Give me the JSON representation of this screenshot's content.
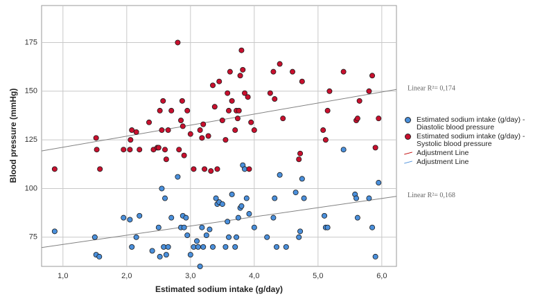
{
  "chart_data": {
    "type": "scatter",
    "x_label": "Estimated sodium intake (g/day)",
    "y_label": "Blood pressure (mmHg)",
    "xlim": [
      0.665,
      6.23
    ],
    "ylim": [
      60,
      194
    ],
    "xticks": [
      {
        "value": 1,
        "label": "1,0"
      },
      {
        "value": 2,
        "label": "2,0"
      },
      {
        "value": 3,
        "label": "3,0"
      },
      {
        "value": 4,
        "label": "4,0"
      },
      {
        "value": 5,
        "label": "5,0"
      },
      {
        "value": 6,
        "label": "6,0"
      }
    ],
    "yticks": [
      75,
      100,
      125,
      150,
      175
    ],
    "grid": true,
    "series": [
      {
        "name": "Estimated sodium intake (g/day) - Diastolic blood pressure",
        "color": "#4a8fdb",
        "x": [
          0.87,
          1.5,
          1.52,
          1.57,
          1.95,
          2.05,
          2.08,
          2.15,
          2.2,
          2.4,
          2.5,
          2.52,
          2.55,
          2.58,
          2.6,
          2.62,
          2.65,
          2.7,
          2.8,
          2.85,
          2.88,
          2.9,
          2.93,
          2.95,
          3.0,
          3.05,
          3.1,
          3.12,
          3.15,
          3.18,
          3.2,
          3.25,
          3.3,
          3.35,
          3.4,
          3.42,
          3.45,
          3.5,
          3.55,
          3.58,
          3.6,
          3.65,
          3.7,
          3.72,
          3.75,
          3.78,
          3.8,
          3.82,
          3.85,
          3.88,
          3.92,
          4.0,
          4.2,
          4.3,
          4.32,
          4.35,
          4.4,
          4.5,
          4.65,
          4.7,
          4.72,
          4.75,
          4.78,
          5.1,
          5.12,
          5.15,
          5.4,
          5.58,
          5.6,
          5.62,
          5.8,
          5.85,
          5.9,
          5.95
        ],
        "values": [
          78,
          75,
          66,
          65,
          85,
          84,
          70,
          75,
          86,
          68,
          80,
          65,
          100,
          70,
          95,
          66,
          70,
          85,
          106,
          80,
          86,
          80,
          85,
          76,
          66,
          70,
          73,
          70,
          60,
          80,
          70,
          76,
          79,
          70,
          95,
          92,
          93,
          92,
          70,
          83,
          75,
          97,
          70,
          75,
          85,
          90,
          91,
          112,
          110,
          95,
          87,
          80,
          75,
          85,
          95,
          70,
          107,
          70,
          98,
          75,
          78,
          105,
          95,
          86,
          80,
          80,
          120,
          97,
          95,
          85,
          95,
          80,
          65,
          103
        ]
      },
      {
        "name": "Estimated sodium intake (g/day) - Systolic blood pressure",
        "color": "#c8102e",
        "x": [
          0.87,
          1.52,
          1.53,
          1.58,
          1.95,
          2.05,
          2.06,
          2.08,
          2.15,
          2.2,
          2.35,
          2.42,
          2.48,
          2.5,
          2.52,
          2.55,
          2.57,
          2.6,
          2.62,
          2.65,
          2.7,
          2.8,
          2.82,
          2.85,
          2.87,
          2.88,
          2.9,
          2.95,
          3.0,
          3.05,
          3.15,
          3.18,
          3.2,
          3.22,
          3.28,
          3.32,
          3.35,
          3.38,
          3.42,
          3.45,
          3.5,
          3.55,
          3.58,
          3.6,
          3.62,
          3.65,
          3.7,
          3.72,
          3.74,
          3.76,
          3.78,
          3.8,
          3.82,
          3.85,
          3.9,
          3.92,
          3.95,
          4.0,
          4.25,
          4.3,
          4.32,
          4.4,
          4.45,
          4.6,
          4.7,
          4.72,
          4.75,
          5.08,
          5.12,
          5.15,
          5.18,
          5.4,
          5.6,
          5.62,
          5.65,
          5.8,
          5.85,
          5.9,
          5.95
        ],
        "values": [
          110,
          126,
          120,
          110,
          120,
          120,
          125,
          130,
          129,
          120,
          134,
          120,
          121,
          121,
          140,
          130,
          145,
          120,
          115,
          130,
          140,
          175,
          120,
          135,
          145,
          132,
          117,
          140,
          128,
          110,
          130,
          126,
          133,
          110,
          127,
          109,
          153,
          142,
          110,
          155,
          135,
          125,
          149,
          140,
          160,
          145,
          130,
          140,
          136,
          140,
          158,
          171,
          161,
          149,
          147,
          110,
          134,
          130,
          149,
          160,
          146,
          164,
          136,
          160,
          115,
          118,
          155,
          130,
          125,
          140,
          150,
          160,
          135,
          136,
          145,
          150,
          158,
          121,
          136
        ]
      }
    ],
    "fit_lines": [
      {
        "label": "Linear R²= 0,174",
        "color": "#808080",
        "x": [
          0.665,
          6.23
        ],
        "values": [
          119.3,
          150.9
        ]
      },
      {
        "label": "Linear R²= 0,168",
        "color": "#808080",
        "x": [
          0.665,
          6.23
        ],
        "values": [
          69.7,
          96.0
        ]
      }
    ],
    "legend_lines": [
      {
        "name": "Adjustment Line",
        "color": "#c00000"
      },
      {
        "name": "Adjustment Line",
        "color": "#4a8fdb"
      }
    ]
  }
}
